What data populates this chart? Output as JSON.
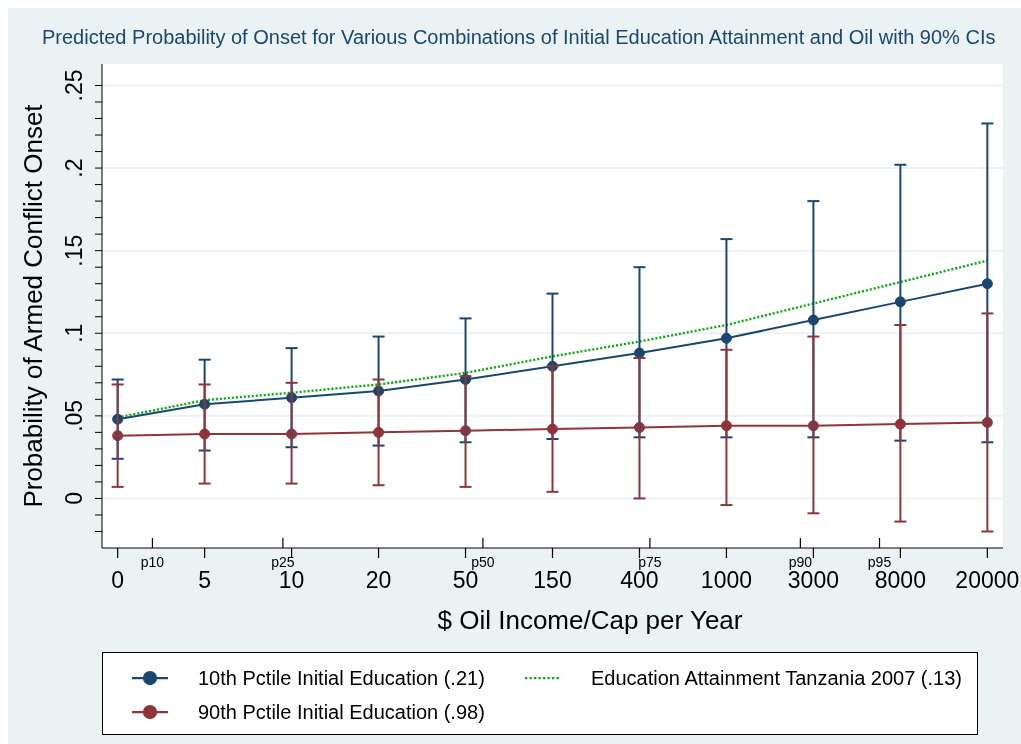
{
  "chart_data": {
    "type": "line",
    "title": "Predicted Probability of Onset for Various Combinations of Initial Education Attainment and Oil with 90% CIs",
    "xlabel": "$ Oil Income/Cap per Year",
    "ylabel": "Probability of Armed Conflict Onset",
    "categories": [
      "0",
      "5",
      "10",
      "20",
      "50",
      "150",
      "400",
      "1000",
      "3000",
      "8000",
      "20000"
    ],
    "series": [
      {
        "name": "10th Pctile Initial Education (.21)",
        "color": "#1a476f",
        "marker": "circle",
        "values": [
          0.048,
          0.057,
          0.061,
          0.065,
          0.072,
          0.08,
          0.088,
          0.097,
          0.108,
          0.119,
          0.13
        ],
        "errors": [
          [
            0.024,
            0.072
          ],
          [
            0.029,
            0.084
          ],
          [
            0.031,
            0.091
          ],
          [
            0.032,
            0.098
          ],
          [
            0.034,
            0.109
          ],
          [
            0.036,
            0.124
          ],
          [
            0.037,
            0.14
          ],
          [
            0.037,
            0.157
          ],
          [
            0.037,
            0.18
          ],
          [
            0.035,
            0.202
          ],
          [
            0.034,
            0.227
          ]
        ]
      },
      {
        "name": "Education Attainment Tanzania 2007 (.13)",
        "color": "#00b000",
        "marker": "none",
        "line_style": "dotted",
        "values": [
          0.049,
          0.0595,
          0.064,
          0.069,
          0.076,
          0.086,
          0.095,
          0.105,
          0.118,
          0.131,
          0.144
        ]
      },
      {
        "name": "90th Pctile Initial Education (.98)",
        "color": "#90353b",
        "marker": "circle",
        "values": [
          0.038,
          0.039,
          0.039,
          0.04,
          0.041,
          0.042,
          0.043,
          0.044,
          0.044,
          0.045,
          0.046
        ],
        "errors": [
          [
            0.007,
            0.069
          ],
          [
            0.009,
            0.069
          ],
          [
            0.009,
            0.07
          ],
          [
            0.008,
            0.072
          ],
          [
            0.007,
            0.074
          ],
          [
            0.004,
            0.08
          ],
          [
            0.0,
            0.085
          ],
          [
            -0.004,
            0.09
          ],
          [
            -0.009,
            0.098
          ],
          [
            -0.014,
            0.105
          ],
          [
            -0.02,
            0.112
          ]
        ]
      }
    ],
    "ylim": [
      -0.03,
      0.263
    ],
    "yticks": [
      {
        "value": -0.02,
        "label": null
      },
      {
        "value": -0.01,
        "label": null
      },
      0,
      {
        "value": 0.01,
        "label": null
      },
      {
        "value": 0.02,
        "label": null
      },
      {
        "value": 0.03,
        "label": null
      },
      {
        "value": 0.04,
        "label": null
      },
      {
        "value": 0.05,
        "label": ".05"
      },
      {
        "value": 0.06,
        "label": null
      },
      {
        "value": 0.07,
        "label": null
      },
      {
        "value": 0.08,
        "label": null
      },
      {
        "value": 0.09,
        "label": null
      },
      {
        "value": 0.1,
        "label": ".1"
      },
      {
        "value": 0.11,
        "label": null
      },
      {
        "value": 0.12,
        "label": null
      },
      {
        "value": 0.13,
        "label": null
      },
      {
        "value": 0.14,
        "label": null
      },
      {
        "value": 0.15,
        "label": ".15"
      },
      {
        "value": 0.16,
        "label": null
      },
      {
        "value": 0.17,
        "label": null
      },
      {
        "value": 0.18,
        "label": null
      },
      {
        "value": 0.19,
        "label": null
      },
      {
        "value": 0.2,
        "label": ".2"
      },
      {
        "value": 0.21,
        "label": null
      },
      {
        "value": 0.22,
        "label": null
      },
      {
        "value": 0.23,
        "label": null
      },
      {
        "value": 0.24,
        "label": null
      },
      {
        "value": 0.25,
        "label": ".25"
      }
    ],
    "grid": "y",
    "legend": "bottom",
    "line_style": "solid",
    "annotations": [
      "p10",
      "p25",
      "p50",
      "p75",
      "p90",
      "p95"
    ]
  }
}
